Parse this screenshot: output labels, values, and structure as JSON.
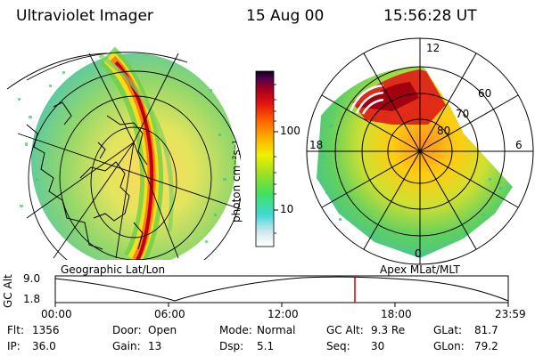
{
  "header": {
    "instrument": "Ultraviolet Imager",
    "date": "15 Aug 00",
    "time": "15:56:28 UT"
  },
  "colorbar": {
    "unit_label": "photon cm⁻²s⁻¹",
    "ticks": [
      "100",
      "10"
    ]
  },
  "geo_panel": {
    "label": "Geographic Lat/Lon"
  },
  "polar_panel": {
    "label": "Apex MLat/MLT",
    "mlt_ticks": [
      "12",
      "18",
      "6",
      "0"
    ],
    "lat_ticks": [
      "60",
      "70",
      "80"
    ]
  },
  "altitude_plot": {
    "ylabel": "GC Alt",
    "ytick_top": "9.0",
    "ytick_bottom": "1.8",
    "time_ticks": [
      "00:00",
      "06:00",
      "12:00",
      "18:00",
      "23:59"
    ],
    "marker_time": "15:56"
  },
  "info": {
    "flt_label": "Flt:",
    "flt_value": "1356",
    "ip_label": "IP:",
    "ip_value": "36.0",
    "door_label": "Door:",
    "door_value": "Open",
    "gain_label": "Gain:",
    "gain_value": "13",
    "mode_label": "Mode:",
    "mode_value": "Normal",
    "dsp_label": "Dsp:",
    "dsp_value": "5.1",
    "gcalt_label": "GC Alt:",
    "gcalt_value": "9.3 Re",
    "seq_label": "Seq:",
    "seq_value": "30",
    "glat_label": "GLat:",
    "glat_value": "81.7",
    "glon_label": "GLon:",
    "glon_value": "79.2"
  },
  "colors": {
    "marker": "#cc0000",
    "aurora_peak": "#aa0000"
  }
}
